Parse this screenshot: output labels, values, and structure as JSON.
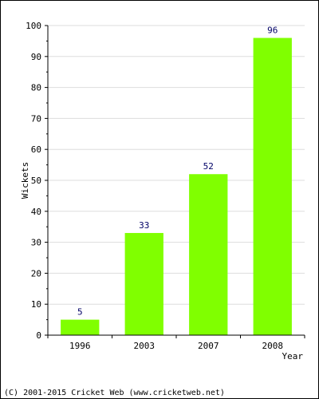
{
  "chart_data": {
    "type": "bar",
    "categories": [
      "1996",
      "2003",
      "2007",
      "2008"
    ],
    "values": [
      5,
      33,
      52,
      96
    ],
    "xlabel": "Year",
    "ylabel": "Wickets",
    "ylim": [
      0,
      100
    ],
    "yticks": [
      "0",
      "10",
      "20",
      "30",
      "40",
      "50",
      "60",
      "70",
      "80",
      "90",
      "100"
    ],
    "grid": true,
    "bar_color": "#80ff00",
    "data_label_color": "#000066"
  },
  "footer": {
    "copyright": "(C) 2001-2015 Cricket Web (www.cricketweb.net)"
  }
}
